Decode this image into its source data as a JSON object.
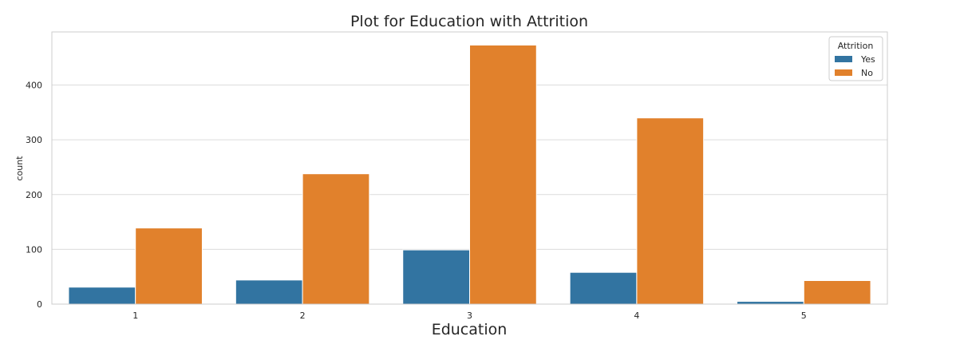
{
  "chart_data": {
    "type": "bar",
    "title": "Plot for Education with Attrition",
    "xlabel": "Education",
    "ylabel": "count",
    "categories": [
      "1",
      "2",
      "3",
      "4",
      "5"
    ],
    "series": [
      {
        "name": "Yes",
        "values": [
          31,
          44,
          99,
          58,
          5
        ],
        "color": "#3274a1"
      },
      {
        "name": "No",
        "values": [
          139,
          238,
          473,
          340,
          43
        ],
        "color": "#e1812c"
      }
    ],
    "ylim": [
      0,
      497
    ],
    "yticks": [
      0,
      100,
      200,
      300,
      400
    ],
    "grid": true,
    "legend": {
      "title": "Attrition",
      "placement": "top-right"
    }
  }
}
